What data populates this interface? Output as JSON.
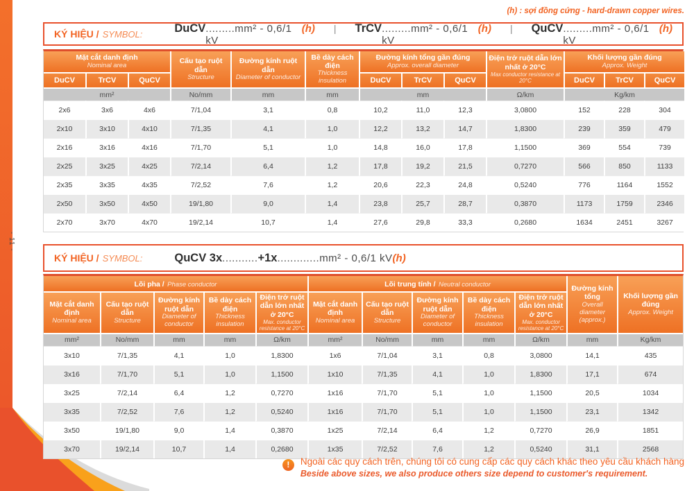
{
  "page": {
    "top_note": "(h) : sợi đồng cứng - hard-drawn copper wires.",
    "page_number": "- 11 -"
  },
  "colors": {
    "accent_orange": "#F26322",
    "header_orange_top": "#F8A057",
    "header_orange_bottom": "#EE7124",
    "table_top_line": "#DF4E2B",
    "units_row_gray": "#C7C7C7",
    "alt_row_gray": "#E9E9E9",
    "swoosh_gray": "#DBDBDB",
    "swoosh_orange": "#F9A11B",
    "swoosh_red": "#E9512C"
  },
  "symbol_bar_1": {
    "label_vi": "KÝ HIỆU /",
    "label_en": "SYMBOL:",
    "separator": "|",
    "entries": [
      {
        "code": "DuCV",
        "rest": ".........mm² - 0,6/1 kV ",
        "suffix": "(h)"
      },
      {
        "code": "TrCV",
        "rest": ".........mm² - 0,6/1 kV ",
        "suffix": "(h)"
      },
      {
        "code": "QuCV",
        "rest": ".........mm² - 0,6/1 kV ",
        "suffix": "(h)"
      }
    ]
  },
  "symbol_bar_2": {
    "label_vi": "KÝ HIỆU /",
    "label_en": "SYMBOL:",
    "code1": "QuCV 3x",
    "dots1": "...........",
    "code2": "+1x",
    "dots2": ".............",
    "rest": "mm² - 0,6/1 kV",
    "suffix": "(h)"
  },
  "table1": {
    "headers": {
      "nominal": {
        "vi": "Mặt cắt danh định",
        "en": "Nominal area"
      },
      "structure": {
        "vi": "Cấu tạo ruột dẫn",
        "en": "Structure"
      },
      "diameter": {
        "vi": "Đường kính ruột dẫn",
        "en": "Diameter of conductor"
      },
      "thickness": {
        "vi": "Bề dày cách điện",
        "en": "Thickness insulation"
      },
      "overall": {
        "vi": "Đường kính tổng gần đúng",
        "en": "Approx. overall diameter"
      },
      "resistance": {
        "vi": "Điện trở ruột dẫn lớn nhất ở 20°C",
        "en": "Max conductor resistance at 20°C"
      },
      "weight": {
        "vi": "Khối lượng gần đúng",
        "en": "Approx. Weight"
      }
    },
    "subheaders": [
      "DuCV",
      "TrCV",
      "QuCV"
    ],
    "units": [
      "mm²",
      "No/mm",
      "mm",
      "mm",
      "mm",
      "Ω/km",
      "Kg/km"
    ],
    "rows": [
      [
        "2x6",
        "3x6",
        "4x6",
        "7/1,04",
        "3,1",
        "0,8",
        "10,2",
        "11,0",
        "12,3",
        "3,0800",
        "152",
        "228",
        "304"
      ],
      [
        "2x10",
        "3x10",
        "4x10",
        "7/1,35",
        "4,1",
        "1,0",
        "12,2",
        "13,2",
        "14,7",
        "1,8300",
        "239",
        "359",
        "479"
      ],
      [
        "2x16",
        "3x16",
        "4x16",
        "7/1,70",
        "5,1",
        "1,0",
        "14,8",
        "16,0",
        "17,8",
        "1,1500",
        "369",
        "554",
        "739"
      ],
      [
        "2x25",
        "3x25",
        "4x25",
        "7/2,14",
        "6,4",
        "1,2",
        "17,8",
        "19,2",
        "21,5",
        "0,7270",
        "566",
        "850",
        "1133"
      ],
      [
        "2x35",
        "3x35",
        "4x35",
        "7/2,52",
        "7,6",
        "1,2",
        "20,6",
        "22,3",
        "24,8",
        "0,5240",
        "776",
        "1164",
        "1552"
      ],
      [
        "2x50",
        "3x50",
        "4x50",
        "19/1,80",
        "9,0",
        "1,4",
        "23,8",
        "25,7",
        "28,7",
        "0,3870",
        "1173",
        "1759",
        "2346"
      ],
      [
        "2x70",
        "3x70",
        "4x70",
        "19/2,14",
        "10,7",
        "1,4",
        "27,6",
        "29,8",
        "33,3",
        "0,2680",
        "1634",
        "2451",
        "3267"
      ]
    ]
  },
  "table2": {
    "groups": {
      "phase": {
        "vi": "Lõi pha /",
        "en": "Phase conductor"
      },
      "neutral": {
        "vi": "Lõi trung tính /",
        "en": "Neutral conductor"
      }
    },
    "col_headers": [
      {
        "vi": "Mặt cắt danh định",
        "en": "Nominal area"
      },
      {
        "vi": "Cấu tạo ruột dẫn",
        "en": "Structure"
      },
      {
        "vi": "Đường kính ruột dẫn",
        "en": "Diameter of conductor"
      },
      {
        "vi": "Bề dày cách điện",
        "en": "Thickness insulation"
      },
      {
        "vi": "Điện trở ruột dẫn lớn nhất ở 20°C",
        "en": "Max. conductor resistance at 20°C"
      }
    ],
    "overall": {
      "vi": "Đường kính tổng",
      "en": "Overall diameter (approx.)"
    },
    "weight": {
      "vi": "Khối lượng gần đúng",
      "en": "Approx. Weight"
    },
    "units": [
      "mm²",
      "No/mm",
      "mm",
      "mm",
      "Ω/km",
      "mm²",
      "No/mm",
      "mm",
      "mm",
      "Ω/km",
      "mm",
      "Kg/km"
    ],
    "rows": [
      [
        "3x10",
        "7/1,35",
        "4,1",
        "1,0",
        "1,8300",
        "1x6",
        "7/1,04",
        "3,1",
        "0,8",
        "3,0800",
        "14,1",
        "435"
      ],
      [
        "3x16",
        "7/1,70",
        "5,1",
        "1,0",
        "1,1500",
        "1x10",
        "7/1,35",
        "4,1",
        "1,0",
        "1,8300",
        "17,1",
        "674"
      ],
      [
        "3x25",
        "7/2,14",
        "6,4",
        "1,2",
        "0,7270",
        "1x16",
        "7/1,70",
        "5,1",
        "1,0",
        "1,1500",
        "20,5",
        "1034"
      ],
      [
        "3x35",
        "7/2,52",
        "7,6",
        "1,2",
        "0,5240",
        "1x16",
        "7/1,70",
        "5,1",
        "1,0",
        "1,1500",
        "23,1",
        "1342"
      ],
      [
        "3x50",
        "19/1,80",
        "9,0",
        "1,4",
        "0,3870",
        "1x25",
        "7/2,14",
        "6,4",
        "1,2",
        "0,7270",
        "26,9",
        "1851"
      ],
      [
        "3x70",
        "19/2,14",
        "10,7",
        "1,4",
        "0,2680",
        "1x35",
        "7/2,52",
        "7,6",
        "1,2",
        "0,5240",
        "31,1",
        "2568"
      ]
    ]
  },
  "footer_note": {
    "icon_glyph": "!",
    "vi": "Ngoài các quy cách trên, chúng tôi có cung cấp các quy cách khác theo yêu cầu khách hàng",
    "en": "Beside above sizes, we also produce others size depend to customer's requirement."
  }
}
